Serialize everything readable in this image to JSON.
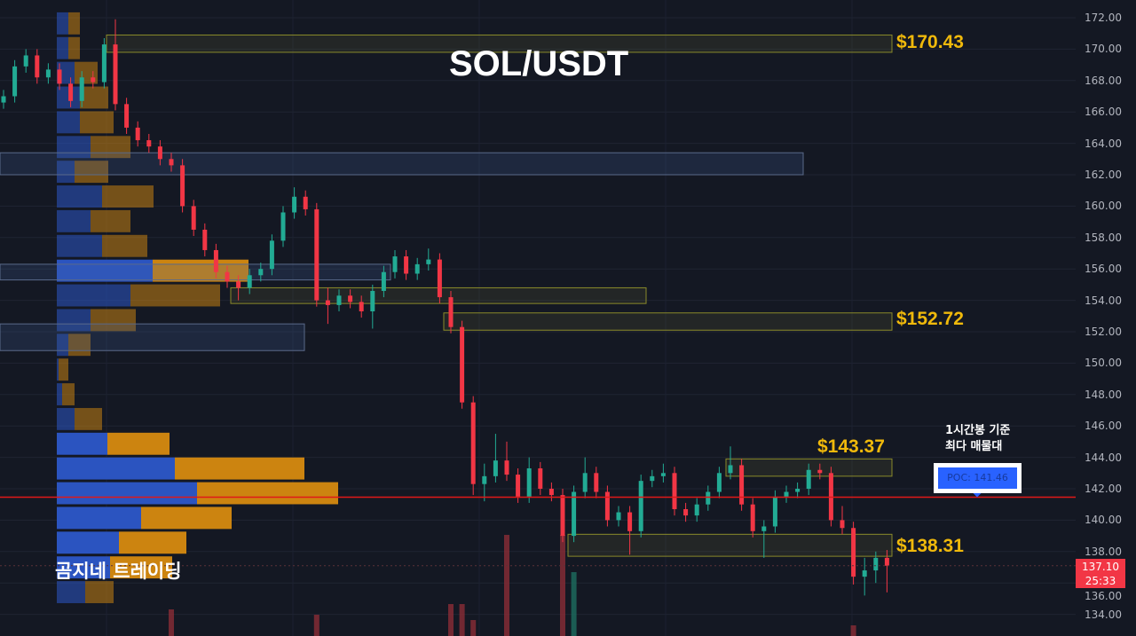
{
  "title": "SOL/USDT",
  "brand": "곰지네 트레이딩",
  "note": {
    "line1": "1시간봉 기준",
    "line2": "최다 매물대"
  },
  "poc": {
    "label": "POC: 141.46",
    "price": 141.46
  },
  "current_price": {
    "price": "137.10",
    "countdown": "25:33"
  },
  "zones": [
    {
      "label": "$170.43",
      "top": 170.9,
      "bottom": 169.8
    },
    {
      "label": "",
      "top": 163.4,
      "bottom": 162.0
    },
    {
      "label": "",
      "top": 156.3,
      "bottom": 155.3
    },
    {
      "label": "",
      "top": 154.8,
      "bottom": 153.8
    },
    {
      "label": "",
      "top": 152.5,
      "bottom": 150.8
    },
    {
      "label": "$152.72",
      "top": 153.2,
      "bottom": 152.1
    },
    {
      "label": "$143.37",
      "top": 143.9,
      "bottom": 142.8
    },
    {
      "label": "$138.31",
      "top": 139.1,
      "bottom": 137.7
    }
  ],
  "colors": {
    "up": "#22ab94",
    "down": "#f23645",
    "zone": "#8a8a2a",
    "poc_line": "#e01818",
    "buy_volume": "#2c57c9",
    "sell_volume": "#d68a10",
    "background": "#141823",
    "label": "#f0b90b"
  },
  "chart_data": {
    "type": "candlestick",
    "title": "SOL/USDT",
    "ylim": [
      133,
      173
    ],
    "yticks": [
      "172.00",
      "170.00",
      "168.00",
      "166.00",
      "164.00",
      "162.00",
      "160.00",
      "158.00",
      "156.00",
      "154.00",
      "152.00",
      "150.00",
      "148.00",
      "146.00",
      "144.00",
      "142.00",
      "140.00",
      "138.00",
      "136.00",
      "134.00"
    ],
    "grid": true,
    "candles": [
      [
        166.6,
        167.4,
        166.2,
        167.0
      ],
      [
        167.0,
        169.3,
        166.6,
        168.9
      ],
      [
        168.9,
        170.0,
        168.5,
        169.6
      ],
      [
        169.6,
        170.0,
        167.8,
        168.2
      ],
      [
        168.2,
        169.1,
        167.8,
        168.7
      ],
      [
        168.7,
        169.1,
        167.4,
        167.8
      ],
      [
        167.8,
        168.2,
        166.3,
        166.7
      ],
      [
        166.7,
        168.6,
        166.3,
        168.2
      ],
      [
        168.2,
        168.6,
        167.5,
        167.9
      ],
      [
        167.9,
        170.7,
        167.5,
        170.3
      ],
      [
        170.3,
        171.9,
        166.1,
        166.5
      ],
      [
        166.5,
        166.9,
        164.6,
        165.0
      ],
      [
        165.0,
        165.4,
        163.8,
        164.2
      ],
      [
        164.2,
        164.6,
        163.4,
        163.8
      ],
      [
        163.8,
        164.2,
        162.6,
        163.0
      ],
      [
        163.0,
        163.4,
        162.2,
        162.6
      ],
      [
        162.6,
        163.0,
        159.6,
        160.0
      ],
      [
        160.0,
        160.4,
        158.1,
        158.5
      ],
      [
        158.5,
        158.9,
        156.8,
        157.2
      ],
      [
        157.2,
        157.6,
        155.4,
        155.8
      ],
      [
        155.8,
        156.2,
        154.8,
        155.2
      ],
      [
        155.2,
        155.6,
        154.0,
        154.8
      ],
      [
        154.8,
        156.0,
        154.4,
        155.6
      ],
      [
        155.6,
        156.4,
        155.2,
        156.0
      ],
      [
        156.0,
        158.2,
        155.6,
        157.8
      ],
      [
        157.8,
        160.0,
        157.4,
        159.6
      ],
      [
        159.6,
        161.2,
        159.2,
        160.6
      ],
      [
        160.6,
        161.0,
        159.4,
        159.8
      ],
      [
        159.8,
        160.2,
        153.6,
        154.0
      ],
      [
        154.0,
        154.8,
        152.5,
        153.7
      ],
      [
        153.7,
        154.7,
        153.3,
        154.3
      ],
      [
        154.3,
        154.7,
        153.5,
        153.9
      ],
      [
        153.9,
        154.3,
        152.9,
        153.3
      ],
      [
        153.3,
        155.0,
        152.2,
        154.6
      ],
      [
        154.6,
        156.2,
        154.2,
        155.8
      ],
      [
        155.8,
        157.2,
        155.4,
        156.8
      ],
      [
        156.8,
        157.2,
        155.3,
        155.7
      ],
      [
        155.7,
        156.7,
        155.3,
        156.3
      ],
      [
        156.3,
        157.3,
        155.9,
        156.6
      ],
      [
        156.6,
        157.0,
        153.8,
        154.2
      ],
      [
        154.2,
        154.6,
        151.9,
        152.3
      ],
      [
        152.3,
        152.7,
        147.1,
        147.5
      ],
      [
        147.5,
        147.9,
        141.6,
        142.3
      ],
      [
        142.3,
        143.6,
        141.2,
        142.8
      ],
      [
        142.8,
        145.5,
        142.4,
        143.8
      ],
      [
        143.8,
        145.0,
        142.5,
        142.9
      ],
      [
        142.9,
        143.3,
        141.1,
        141.5
      ],
      [
        141.5,
        144.0,
        141.1,
        143.3
      ],
      [
        143.3,
        143.7,
        141.6,
        142.0
      ],
      [
        142.0,
        142.4,
        141.2,
        141.6
      ],
      [
        141.6,
        142.0,
        138.6,
        139.0
      ],
      [
        139.0,
        142.2,
        138.6,
        141.8
      ],
      [
        141.8,
        144.0,
        141.4,
        143.0
      ],
      [
        143.0,
        143.4,
        141.4,
        141.8
      ],
      [
        141.8,
        142.2,
        139.6,
        140.0
      ],
      [
        140.0,
        140.9,
        139.6,
        140.5
      ],
      [
        140.5,
        140.9,
        137.8,
        139.3
      ],
      [
        139.3,
        142.9,
        138.9,
        142.5
      ],
      [
        142.5,
        143.2,
        142.1,
        142.8
      ],
      [
        142.8,
        143.6,
        142.4,
        143.0
      ],
      [
        143.0,
        143.4,
        140.3,
        140.7
      ],
      [
        140.7,
        141.1,
        139.9,
        140.3
      ],
      [
        140.3,
        141.4,
        139.9,
        141.0
      ],
      [
        141.0,
        142.2,
        140.6,
        141.8
      ],
      [
        141.8,
        143.4,
        141.4,
        143.0
      ],
      [
        143.0,
        144.7,
        142.6,
        143.5
      ],
      [
        143.5,
        143.9,
        140.6,
        141.0
      ],
      [
        141.0,
        141.4,
        138.9,
        139.3
      ],
      [
        139.3,
        140.0,
        137.6,
        139.6
      ],
      [
        139.6,
        141.9,
        139.2,
        141.5
      ],
      [
        141.5,
        142.2,
        141.1,
        141.8
      ],
      [
        141.8,
        142.4,
        141.4,
        142.0
      ],
      [
        142.0,
        143.6,
        141.6,
        143.2
      ],
      [
        143.2,
        143.6,
        142.6,
        143.0
      ],
      [
        143.0,
        143.4,
        139.6,
        140.0
      ],
      [
        140.0,
        140.9,
        139.1,
        139.5
      ],
      [
        139.5,
        139.9,
        135.9,
        136.4
      ],
      [
        136.4,
        137.6,
        135.2,
        136.8
      ],
      [
        136.8,
        138.0,
        136.0,
        137.6
      ],
      [
        137.6,
        138.1,
        135.4,
        137.1
      ]
    ],
    "volume": [
      0,
      0,
      0,
      0,
      0,
      0,
      0,
      0,
      0,
      0,
      0,
      0,
      0,
      0,
      0,
      25,
      0,
      0,
      0,
      0,
      0,
      0,
      0,
      0,
      0,
      0,
      0,
      0,
      20,
      0,
      0,
      0,
      0,
      0,
      0,
      0,
      0,
      0,
      0,
      0,
      30,
      30,
      15,
      0,
      0,
      95,
      0,
      0,
      0,
      0,
      95,
      60,
      0,
      0,
      0,
      0,
      0,
      0,
      0,
      0,
      0,
      0,
      0,
      0,
      0,
      0,
      0,
      0,
      0,
      0,
      0,
      0,
      0,
      0,
      0,
      0,
      10,
      0,
      0,
      0
    ],
    "volume_profile": {
      "price_top": 172.4,
      "price_bottom": 134.6,
      "buy": [
        13,
        13,
        20,
        26,
        26,
        38,
        20,
        51,
        38,
        51,
        108,
        83,
        38,
        13,
        2,
        6,
        20,
        57,
        133,
        158,
        95,
        70,
        60,
        32
      ],
      "sell": [
        13,
        13,
        26,
        32,
        38,
        45,
        38,
        58,
        45,
        51,
        108,
        101,
        51,
        25,
        11,
        14,
        31,
        70,
        146,
        159,
        102,
        76,
        70,
        32
      ]
    }
  }
}
